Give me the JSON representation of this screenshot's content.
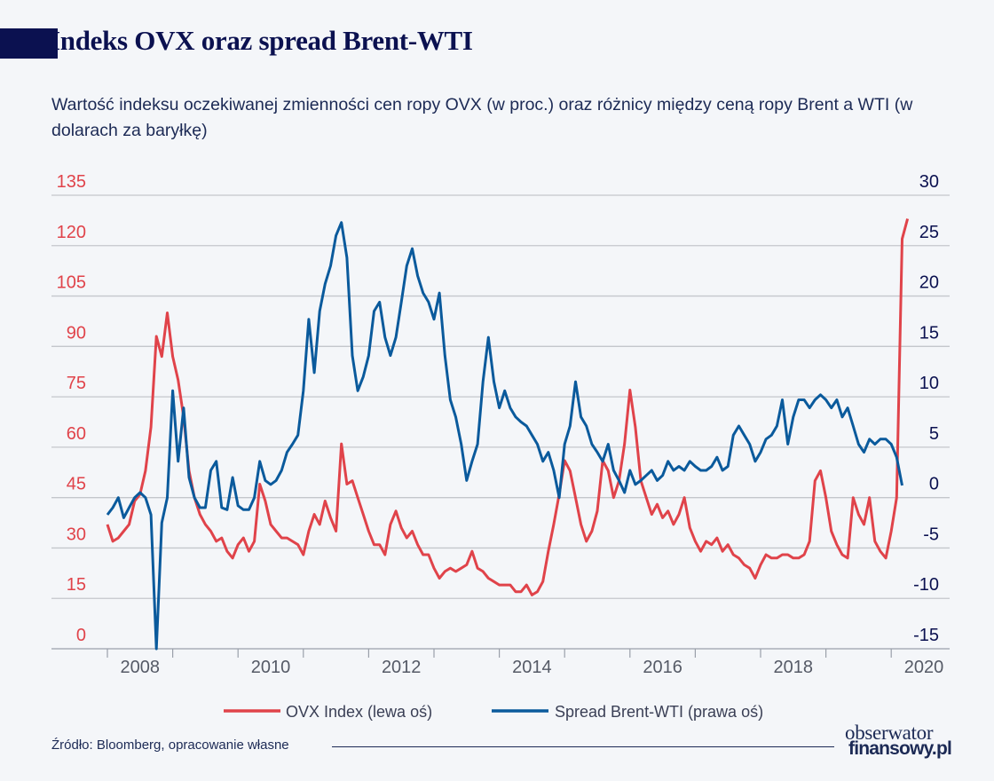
{
  "title": "Indeks OVX oraz spread Brent-WTI",
  "subtitle": "Wartość indeksu oczekiwanej zmienności cen ropy OVX (w proc.) oraz różnicy między ceną ropy Brent a WTI (w dolarach za baryłkę)",
  "source": "Źródło: Bloomberg, opracowanie własne",
  "logo": {
    "line1": "obserwator",
    "line2": "finansowy.pl"
  },
  "colors": {
    "ovx": "#e0434a",
    "spread": "#0a5a9c",
    "left_axis": "#e0434a",
    "right_axis": "#0b1150",
    "title": "#0b1150"
  },
  "chart_data": {
    "type": "line",
    "xlabel": "",
    "x_ticks": [
      "2008",
      "2010",
      "2012",
      "2014",
      "2016",
      "2018",
      "2020"
    ],
    "left_axis": {
      "ylim": [
        0,
        135
      ],
      "ticks": [
        "0",
        "15",
        "30",
        "45",
        "60",
        "75",
        "90",
        "105",
        "120",
        "135"
      ]
    },
    "right_axis": {
      "ylim": [
        -15,
        30
      ],
      "ticks": [
        "-15",
        "-10",
        "-5",
        "0",
        "5",
        "10",
        "15",
        "20",
        "25",
        "30"
      ]
    },
    "grid": true,
    "legend": "bottom",
    "series": [
      {
        "name": "OVX Index (lewa oś)",
        "axis": "left",
        "x": [
          "2008-01",
          "2008-02",
          "2008-03",
          "2008-04",
          "2008-05",
          "2008-06",
          "2008-07",
          "2008-08",
          "2008-09",
          "2008-10",
          "2008-11",
          "2008-12",
          "2009-01",
          "2009-02",
          "2009-03",
          "2009-04",
          "2009-05",
          "2009-06",
          "2009-07",
          "2009-08",
          "2009-09",
          "2009-10",
          "2009-11",
          "2009-12",
          "2010-01",
          "2010-02",
          "2010-03",
          "2010-04",
          "2010-05",
          "2010-06",
          "2010-07",
          "2010-08",
          "2010-09",
          "2010-10",
          "2010-11",
          "2010-12",
          "2011-01",
          "2011-02",
          "2011-03",
          "2011-04",
          "2011-05",
          "2011-06",
          "2011-07",
          "2011-08",
          "2011-09",
          "2011-10",
          "2011-11",
          "2011-12",
          "2012-01",
          "2012-02",
          "2012-03",
          "2012-04",
          "2012-05",
          "2012-06",
          "2012-07",
          "2012-08",
          "2012-09",
          "2012-10",
          "2012-11",
          "2012-12",
          "2013-01",
          "2013-02",
          "2013-03",
          "2013-04",
          "2013-05",
          "2013-06",
          "2013-07",
          "2013-08",
          "2013-09",
          "2013-10",
          "2013-11",
          "2013-12",
          "2014-01",
          "2014-02",
          "2014-03",
          "2014-04",
          "2014-05",
          "2014-06",
          "2014-07",
          "2014-08",
          "2014-09",
          "2014-10",
          "2014-11",
          "2014-12",
          "2015-01",
          "2015-02",
          "2015-03",
          "2015-04",
          "2015-05",
          "2015-06",
          "2015-07",
          "2015-08",
          "2015-09",
          "2015-10",
          "2015-11",
          "2015-12",
          "2016-01",
          "2016-02",
          "2016-03",
          "2016-04",
          "2016-05",
          "2016-06",
          "2016-07",
          "2016-08",
          "2016-09",
          "2016-10",
          "2016-11",
          "2016-12",
          "2017-01",
          "2017-02",
          "2017-03",
          "2017-04",
          "2017-05",
          "2017-06",
          "2017-07",
          "2017-08",
          "2017-09",
          "2017-10",
          "2017-11",
          "2017-12",
          "2018-01",
          "2018-02",
          "2018-03",
          "2018-04",
          "2018-05",
          "2018-06",
          "2018-07",
          "2018-08",
          "2018-09",
          "2018-10",
          "2018-11",
          "2018-12",
          "2019-01",
          "2019-02",
          "2019-03",
          "2019-04",
          "2019-05",
          "2019-06",
          "2019-07",
          "2019-08",
          "2019-09",
          "2019-10",
          "2019-11",
          "2019-12",
          "2020-01",
          "2020-02",
          "2020-03",
          "2020-04"
        ],
        "y": [
          37,
          32,
          33,
          35,
          37,
          44,
          46,
          53,
          66,
          93,
          87,
          100,
          87,
          80,
          69,
          53,
          45,
          40,
          37,
          35,
          32,
          33,
          29,
          27,
          31,
          33,
          29,
          32,
          49,
          44,
          37,
          35,
          33,
          33,
          32,
          31,
          28,
          35,
          40,
          37,
          44,
          39,
          35,
          61,
          49,
          50,
          45,
          40,
          35,
          31,
          31,
          28,
          37,
          41,
          36,
          33,
          35,
          31,
          28,
          28,
          24,
          21,
          23,
          24,
          23,
          24,
          25,
          29,
          24,
          23,
          21,
          20,
          19,
          19,
          19,
          17,
          17,
          19,
          16,
          17,
          20,
          29,
          37,
          46,
          56,
          53,
          45,
          37,
          32,
          35,
          41,
          56,
          53,
          45,
          50,
          61,
          77,
          66,
          50,
          45,
          40,
          43,
          39,
          41,
          37,
          40,
          45,
          36,
          32,
          29,
          32,
          31,
          33,
          29,
          31,
          28,
          27,
          25,
          24,
          21,
          25,
          28,
          27,
          27,
          28,
          28,
          27,
          27,
          28,
          32,
          50,
          53,
          45,
          35,
          31,
          28,
          27,
          45,
          40,
          37,
          45,
          32,
          29,
          27,
          35,
          45,
          122,
          128
        ]
      },
      {
        "name": "Spread Brent-WTI (prawa oś)",
        "axis": "right",
        "x": [
          "2008-01",
          "2008-02",
          "2008-03",
          "2008-04",
          "2008-05",
          "2008-06",
          "2008-07",
          "2008-08",
          "2008-09",
          "2008-10",
          "2008-11",
          "2008-12",
          "2009-01",
          "2009-02",
          "2009-03",
          "2009-04",
          "2009-05",
          "2009-06",
          "2009-07",
          "2009-08",
          "2009-09",
          "2009-10",
          "2009-11",
          "2009-12",
          "2010-01",
          "2010-02",
          "2010-03",
          "2010-04",
          "2010-05",
          "2010-06",
          "2010-07",
          "2010-08",
          "2010-09",
          "2010-10",
          "2010-11",
          "2010-12",
          "2011-01",
          "2011-02",
          "2011-03",
          "2011-04",
          "2011-05",
          "2011-06",
          "2011-07",
          "2011-08",
          "2011-09",
          "2011-10",
          "2011-11",
          "2011-12",
          "2012-01",
          "2012-02",
          "2012-03",
          "2012-04",
          "2012-05",
          "2012-06",
          "2012-07",
          "2012-08",
          "2012-09",
          "2012-10",
          "2012-11",
          "2012-12",
          "2013-01",
          "2013-02",
          "2013-03",
          "2013-04",
          "2013-05",
          "2013-06",
          "2013-07",
          "2013-08",
          "2013-09",
          "2013-10",
          "2013-11",
          "2013-12",
          "2014-01",
          "2014-02",
          "2014-03",
          "2014-04",
          "2014-05",
          "2014-06",
          "2014-07",
          "2014-08",
          "2014-09",
          "2014-10",
          "2014-11",
          "2014-12",
          "2015-01",
          "2015-02",
          "2015-03",
          "2015-04",
          "2015-05",
          "2015-06",
          "2015-07",
          "2015-08",
          "2015-09",
          "2015-10",
          "2015-11",
          "2015-12",
          "2016-01",
          "2016-02",
          "2016-03",
          "2016-04",
          "2016-05",
          "2016-06",
          "2016-07",
          "2016-08",
          "2016-09",
          "2016-10",
          "2016-11",
          "2016-12",
          "2017-01",
          "2017-02",
          "2017-03",
          "2017-04",
          "2017-05",
          "2017-06",
          "2017-07",
          "2017-08",
          "2017-09",
          "2017-10",
          "2017-11",
          "2017-12",
          "2018-01",
          "2018-02",
          "2018-03",
          "2018-04",
          "2018-05",
          "2018-06",
          "2018-07",
          "2018-08",
          "2018-09",
          "2018-10",
          "2018-11",
          "2018-12",
          "2019-01",
          "2019-02",
          "2019-03",
          "2019-04",
          "2019-05",
          "2019-06",
          "2019-07",
          "2019-08",
          "2019-09",
          "2019-10",
          "2019-11",
          "2019-12",
          "2020-01",
          "2020-02",
          "2020-03"
        ],
        "y": [
          -1.7,
          -1,
          0,
          -2,
          -1,
          0,
          0.5,
          0,
          -1.7,
          -15,
          -2.5,
          0,
          10.6,
          3.6,
          8.9,
          2,
          0,
          -1,
          -1,
          2.7,
          3.6,
          -1,
          -1.2,
          2,
          -0.8,
          -1.2,
          -1.2,
          0,
          3.6,
          1.7,
          1.3,
          1.7,
          2.7,
          4.5,
          5.3,
          6.2,
          10.6,
          17.7,
          12.4,
          18.5,
          21.2,
          23,
          26,
          27.3,
          23.8,
          14.1,
          10.6,
          12,
          14.1,
          18.5,
          19.4,
          15.9,
          14.1,
          15.9,
          19.4,
          23,
          24.7,
          22,
          20.3,
          19.4,
          17.7,
          20.3,
          14.1,
          9.7,
          8,
          5.3,
          1.7,
          3.6,
          5.3,
          11.5,
          15.9,
          11.5,
          8.9,
          10.6,
          8.9,
          8,
          7.5,
          7.1,
          6.2,
          5.3,
          3.6,
          4.5,
          2.7,
          0,
          5.3,
          7.1,
          11.5,
          8,
          7.1,
          5.3,
          4.5,
          3.6,
          5.3,
          2.7,
          1.7,
          0.5,
          2.7,
          1.3,
          1.7,
          2.2,
          2.7,
          1.7,
          2.2,
          3.6,
          2.7,
          3.1,
          2.7,
          3.6,
          3.1,
          2.7,
          2.7,
          3.1,
          4,
          2.7,
          3.1,
          6.2,
          7.1,
          6.2,
          5.3,
          3.6,
          4.5,
          5.8,
          6.2,
          7.1,
          9.7,
          5.3,
          8,
          9.7,
          9.7,
          8.9,
          9.7,
          10.2,
          9.7,
          8.9,
          9.7,
          8,
          8.9,
          7.1,
          5.3,
          4.5,
          5.8,
          5.3,
          5.8,
          5.8,
          5.3,
          4,
          1.2
        ]
      }
    ]
  }
}
